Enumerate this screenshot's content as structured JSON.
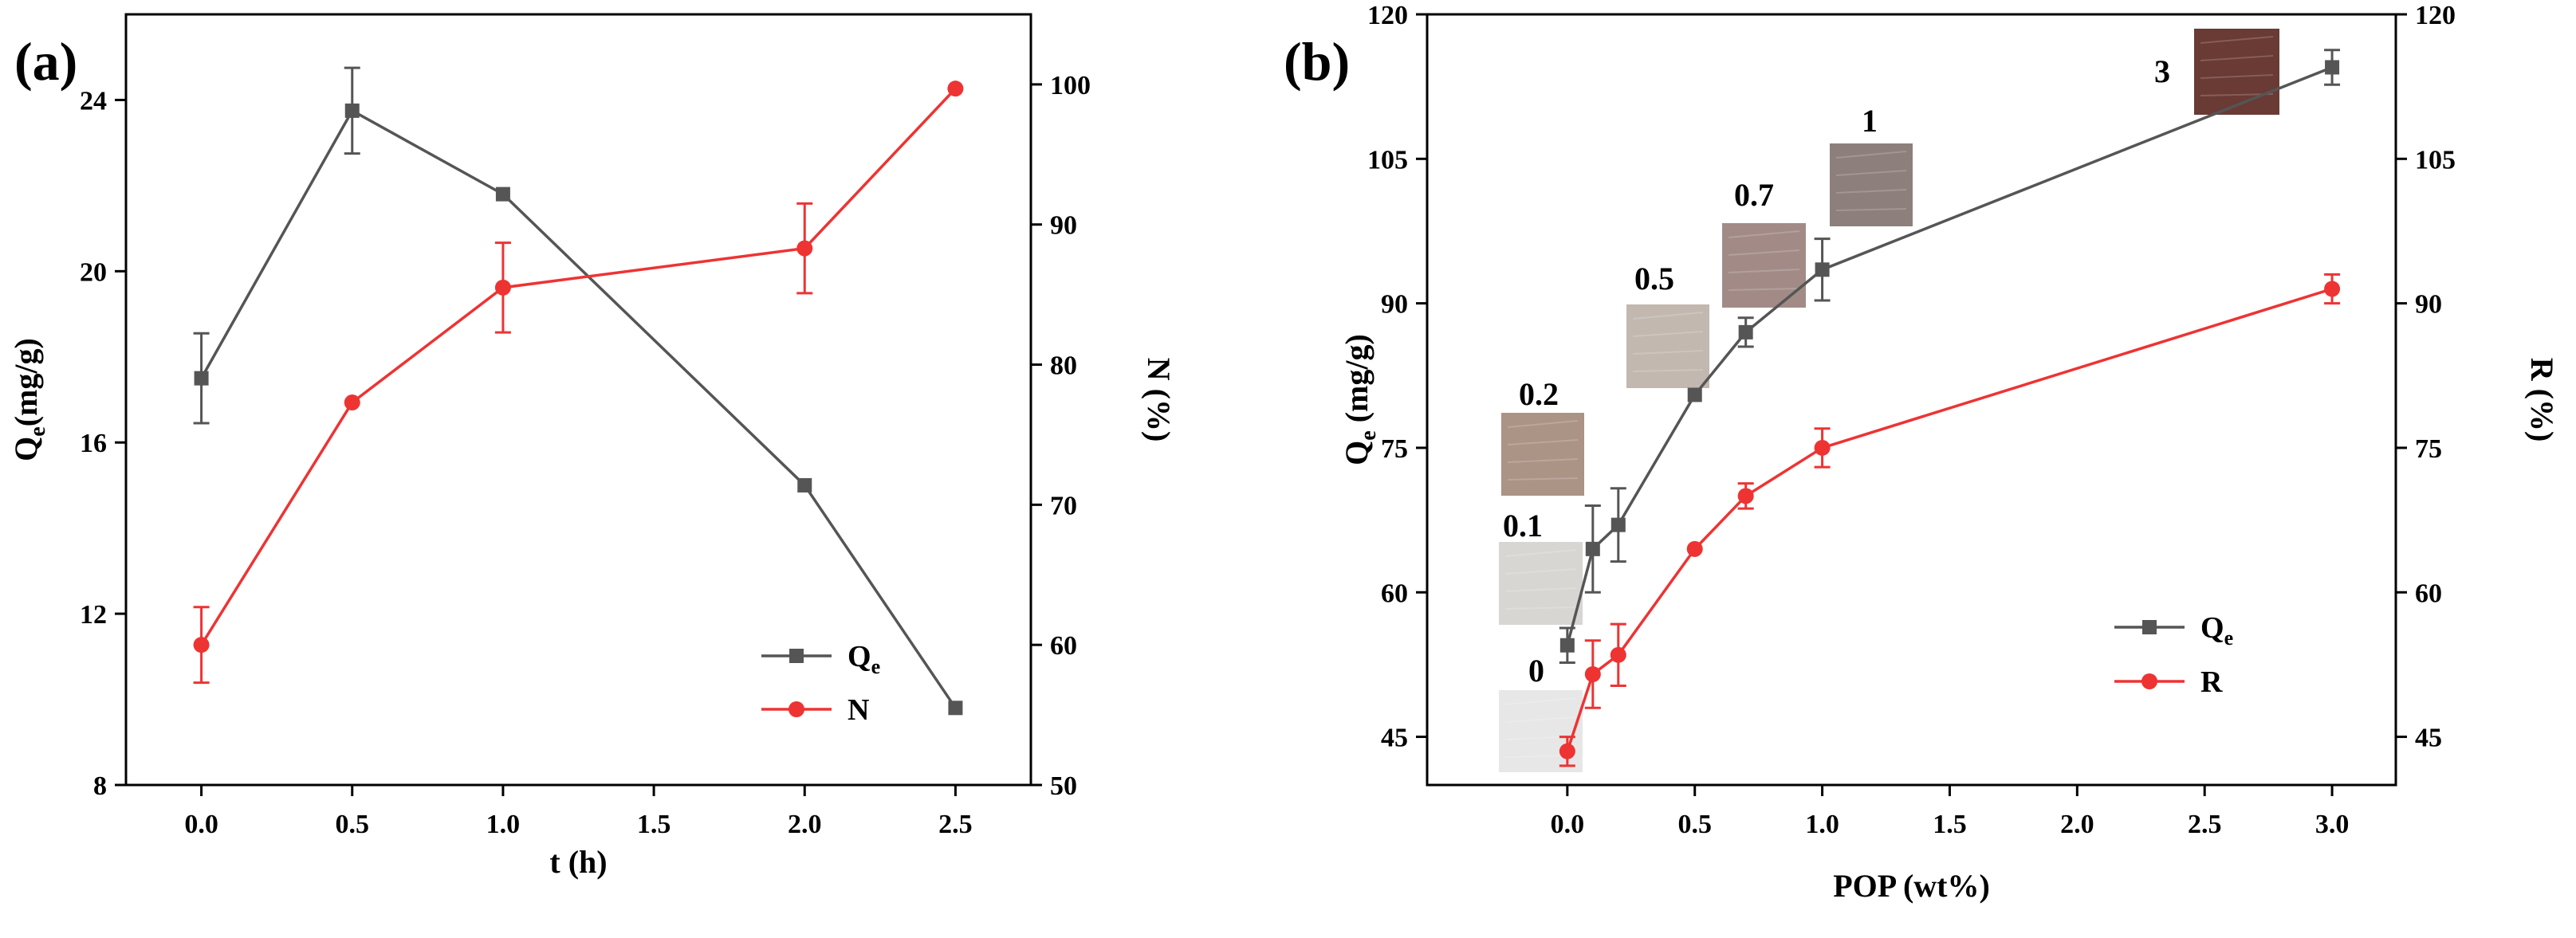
{
  "colors": {
    "qe": "#4a4a4a",
    "second": "#ee3333",
    "axis": "#000000",
    "line_dark": "#555555"
  },
  "chart_data": [
    {
      "panel_label": "(a)",
      "type": "line",
      "xlabel": "t (h)",
      "ylabel": {
        "main": "Q",
        "sub": "e",
        "rest": "(mg/g)"
      },
      "y2label": "N (%)",
      "xlim": [
        -0.25,
        2.75
      ],
      "ylim": [
        8,
        26
      ],
      "y2lim": [
        50,
        105
      ],
      "xticks": [
        "0.0",
        "0.5",
        "1.0",
        "1.5",
        "2.0",
        "2.5"
      ],
      "yticks": [
        "8",
        "12",
        "16",
        "20",
        "24"
      ],
      "y2ticks": [
        "50",
        "60",
        "70",
        "80",
        "90",
        "100"
      ],
      "series": [
        {
          "name": "Q",
          "name_sub": "e",
          "axis": "left",
          "marker": "square",
          "x": [
            0.0,
            0.5,
            1.0,
            2.0,
            2.5
          ],
          "values": [
            17.5,
            23.75,
            21.8,
            15.0,
            9.8
          ],
          "errors": [
            1.05,
            1.0,
            0,
            0,
            0
          ]
        },
        {
          "name": "N",
          "name_sub": "",
          "axis": "right",
          "marker": "circle",
          "x": [
            0.0,
            0.5,
            1.0,
            2.0,
            2.5
          ],
          "values": [
            60.0,
            77.3,
            85.5,
            88.3,
            99.7
          ],
          "errors": [
            2.7,
            0,
            3.2,
            3.2,
            0
          ]
        }
      ],
      "legend_position": "bottom-right"
    },
    {
      "panel_label": "(b)",
      "type": "line",
      "xlabel": "POP (wt%)",
      "ylabel": {
        "main": "Q",
        "sub": "e",
        "rest": " (mg/g)"
      },
      "y2label": "R (%)",
      "xlim": [
        -0.55,
        3.25
      ],
      "ylim": [
        40,
        120
      ],
      "y2lim": [
        40,
        120
      ],
      "xticks": [
        "0.0",
        "0.5",
        "1.0",
        "1.5",
        "2.0",
        "2.5",
        "3.0"
      ],
      "yticks": [
        "45",
        "60",
        "75",
        "90",
        "105",
        "120"
      ],
      "y2ticks": [
        "45",
        "60",
        "75",
        "90",
        "105",
        "120"
      ],
      "series": [
        {
          "name": "Q",
          "name_sub": "e",
          "axis": "left",
          "marker": "square",
          "x": [
            0.0,
            0.1,
            0.2,
            0.5,
            0.7,
            1.0,
            3.0
          ],
          "values": [
            54.5,
            64.5,
            67.0,
            80.5,
            87.0,
            93.5,
            114.5
          ],
          "errors": [
            1.8,
            4.5,
            3.8,
            0,
            1.5,
            3.2,
            1.8
          ]
        },
        {
          "name": "R",
          "name_sub": "",
          "axis": "right",
          "marker": "circle",
          "x": [
            0.0,
            0.1,
            0.2,
            0.5,
            0.7,
            1.0,
            3.0
          ],
          "values": [
            43.5,
            51.5,
            53.5,
            64.5,
            70.0,
            75.0,
            91.5
          ],
          "errors": [
            1.5,
            3.5,
            3.2,
            0,
            1.3,
            2.0,
            1.5
          ]
        }
      ],
      "legend_position": "bottom-right",
      "sample_images": [
        {
          "label": "0",
          "color": "#e7e7e7"
        },
        {
          "label": "0.1",
          "color": "#d8d6d2"
        },
        {
          "label": "0.2",
          "color": "#ab9386"
        },
        {
          "label": "0.5",
          "color": "#c2b8b0"
        },
        {
          "label": "0.7",
          "color": "#a28b87"
        },
        {
          "label": "1",
          "color": "#8d7f7c"
        },
        {
          "label": "3",
          "color": "#6a3a35"
        }
      ]
    }
  ]
}
